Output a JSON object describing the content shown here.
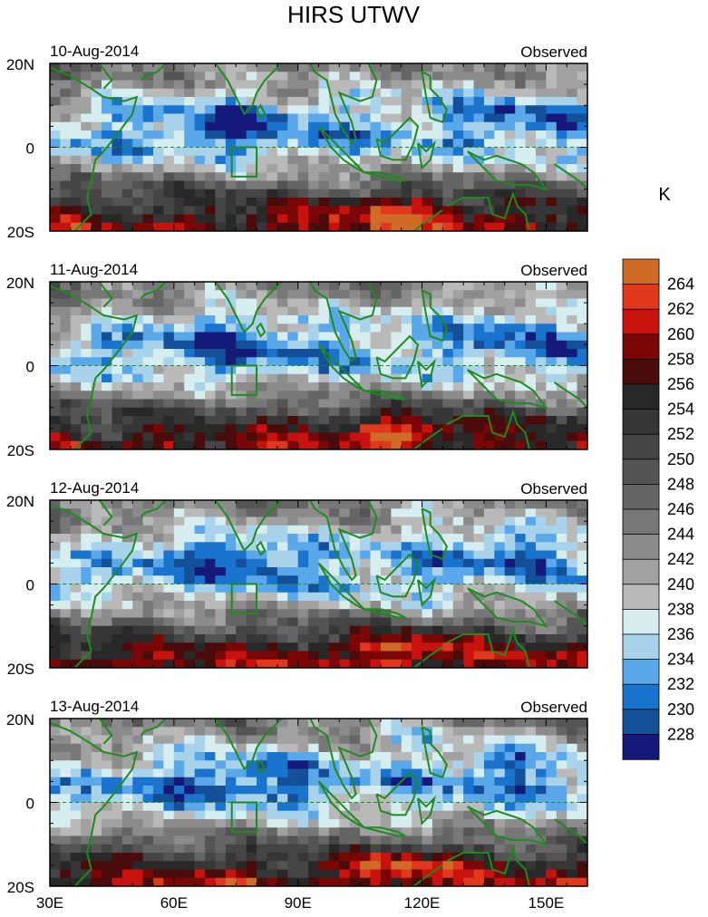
{
  "chart_data": {
    "type": "heatmap",
    "title": "HIRS UTWV",
    "colorbar": {
      "unit": "K",
      "levels": [
        228,
        230,
        232,
        234,
        236,
        238,
        240,
        242,
        244,
        246,
        248,
        250,
        252,
        254,
        256,
        258,
        260,
        262,
        264
      ],
      "colors": [
        "#15197a",
        "#144f9a",
        "#1a74cd",
        "#5aa8ea",
        "#a9d3ea",
        "#d6eef0",
        "#b9b9b9",
        "#a1a1a1",
        "#8b8b8b",
        "#777777",
        "#656565",
        "#545454",
        "#454545",
        "#363636",
        "#282828",
        "#4a0b0b",
        "#7a0606",
        "#c8120e",
        "#e0381c",
        "#cf6b27"
      ]
    },
    "x_axis": {
      "range": [
        30,
        160
      ],
      "ticks": [
        30,
        60,
        90,
        120,
        150
      ],
      "tick_labels": [
        "30E",
        "60E",
        "90E",
        "120E",
        "150E"
      ]
    },
    "y_axis": {
      "range": [
        -20,
        20
      ],
      "ticks": [
        20,
        0,
        -20
      ],
      "tick_labels": [
        "20N",
        "0",
        "20S"
      ]
    },
    "panels": [
      {
        "date": "10-Aug-2014",
        "label": "Observed"
      },
      {
        "date": "11-Aug-2014",
        "label": "Observed"
      },
      {
        "date": "12-Aug-2014",
        "label": "Observed"
      },
      {
        "date": "13-Aug-2014",
        "label": "Observed"
      }
    ],
    "overlays": {
      "coastline_color": "#1f8a1f",
      "equator_line": "dashed green at 0",
      "box": {
        "lon": [
          74,
          80
        ],
        "lat": [
          -7,
          0
        ]
      }
    }
  }
}
